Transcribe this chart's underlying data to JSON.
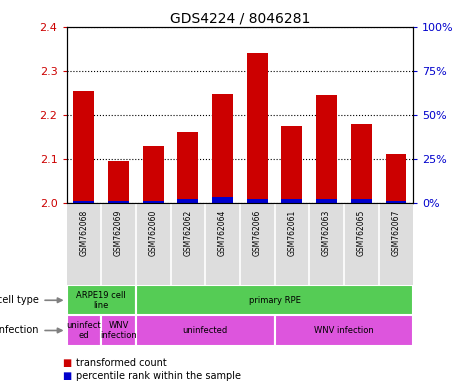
{
  "title": "GDS4224 / 8046281",
  "samples": [
    "GSM762068",
    "GSM762069",
    "GSM762060",
    "GSM762062",
    "GSM762064",
    "GSM762066",
    "GSM762061",
    "GSM762063",
    "GSM762065",
    "GSM762067"
  ],
  "transformed_counts": [
    2.255,
    2.095,
    2.13,
    2.16,
    2.248,
    2.34,
    2.175,
    2.245,
    2.18,
    2.11
  ],
  "percentile_ranks": [
    1,
    1,
    0,
    2,
    3,
    2,
    2,
    2,
    2,
    1
  ],
  "ylim": [
    2.0,
    2.4
  ],
  "yticks": [
    2.0,
    2.1,
    2.2,
    2.3,
    2.4
  ],
  "right_yticks": [
    0,
    25,
    50,
    75,
    100
  ],
  "right_ytick_labels": [
    "0%",
    "25%",
    "50%",
    "75%",
    "100%"
  ],
  "bar_color_red": "#cc0000",
  "bar_color_blue": "#0000cc",
  "cell_types": [
    {
      "label": "ARPE19 cell\nline",
      "start": 0,
      "end": 2,
      "color": "#66cc66"
    },
    {
      "label": "primary RPE",
      "start": 2,
      "end": 10,
      "color": "#66cc66"
    }
  ],
  "infection_types": [
    {
      "label": "uninfect\ned",
      "start": 0,
      "end": 1,
      "color": "#dd77dd"
    },
    {
      "label": "WNV\ninfection",
      "start": 1,
      "end": 2,
      "color": "#dd77dd"
    },
    {
      "label": "uninfected",
      "start": 2,
      "end": 6,
      "color": "#dd77dd"
    },
    {
      "label": "WNV infection",
      "start": 6,
      "end": 10,
      "color": "#dd77dd"
    }
  ],
  "legend_items": [
    {
      "label": "transformed count",
      "color": "#cc0000"
    },
    {
      "label": "percentile rank within the sample",
      "color": "#0000cc"
    }
  ],
  "left_label_color": "#cc0000",
  "right_label_color": "#0000cc",
  "tick_label_color": "#888888",
  "green_color": "#55cc55",
  "magenta_color": "#dd55dd"
}
